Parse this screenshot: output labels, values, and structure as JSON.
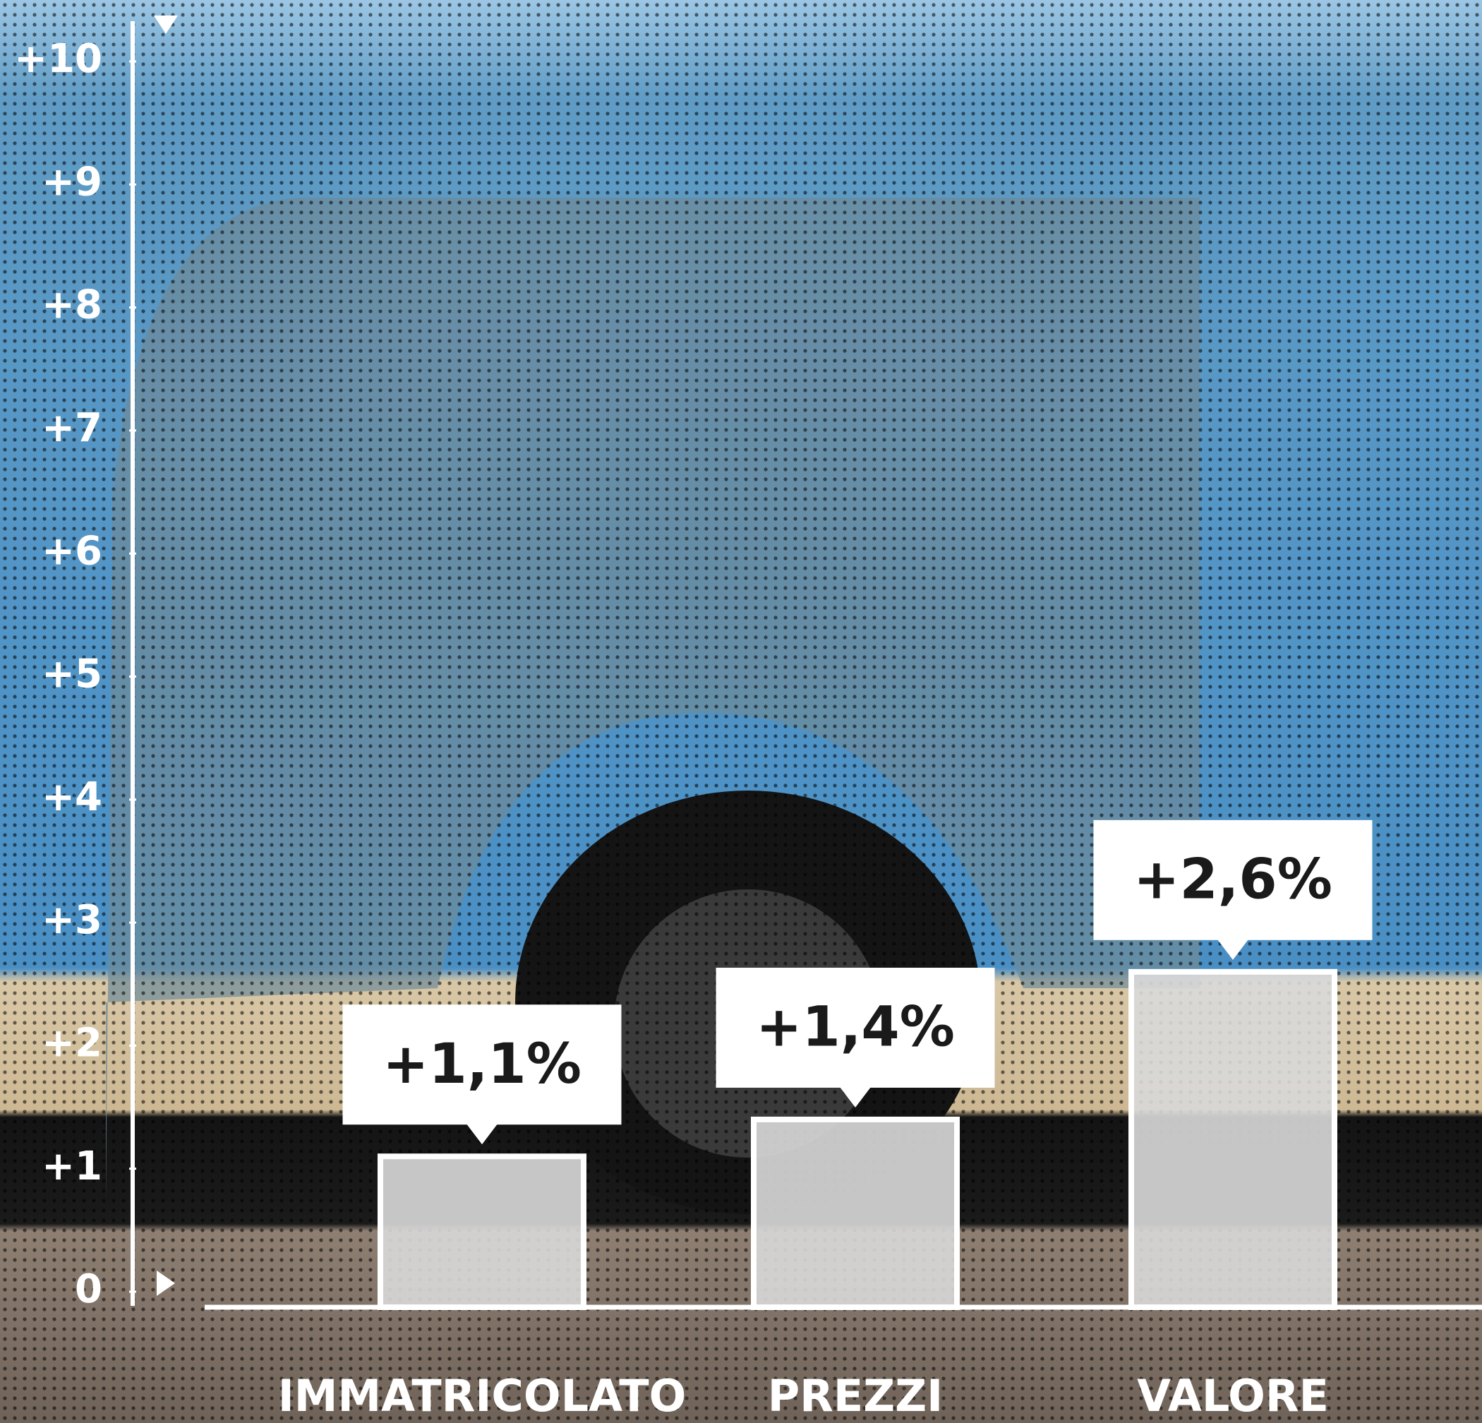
{
  "chart_data": {
    "type": "bar",
    "categories": [
      "IMMATRICOLATO",
      "PREZZI",
      "VALORE"
    ],
    "values": [
      1.1,
      1.4,
      2.6
    ],
    "value_labels": [
      "+1,1%",
      "+1,4%",
      "+2,6%"
    ],
    "color": "#d9d9d9",
    "ylim": [
      0,
      10
    ],
    "yticks": [
      0,
      {
        "value": 1,
        "label": "+1"
      },
      {
        "value": 2,
        "label": "+2"
      },
      {
        "value": 3,
        "label": "+3"
      },
      {
        "value": 4,
        "label": "+4"
      },
      {
        "value": 5,
        "label": "+5"
      },
      {
        "value": 6,
        "label": "+6"
      },
      {
        "value": 7,
        "label": "+7"
      },
      {
        "value": 8,
        "label": "+8"
      },
      {
        "value": 9,
        "label": "+9"
      },
      {
        "value": 10,
        "label": "+10"
      }
    ]
  }
}
